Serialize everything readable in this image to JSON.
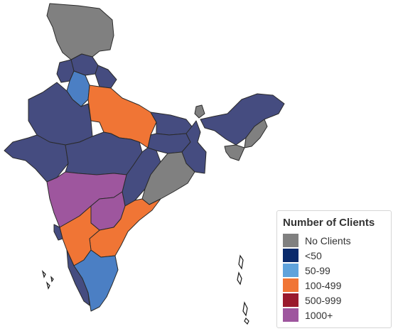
{
  "legend": {
    "title": "Number of Clients",
    "items": [
      {
        "key": "none",
        "label": "No Clients",
        "color": "#808080"
      },
      {
        "key": "lt50",
        "label": "<50",
        "color": "#0a2a6b"
      },
      {
        "key": "b50",
        "label": "50-99",
        "color": "#5fa3dc"
      },
      {
        "key": "b100",
        "label": "100-499",
        "color": "#f07535"
      },
      {
        "key": "b500",
        "label": "500-999",
        "color": "#9a1a2e"
      },
      {
        "key": "b1000",
        "label": "1000+",
        "color": "#9e569e"
      }
    ]
  },
  "map_colors": {
    "no_clients": "#808080",
    "lt50_rendered": "#454c80",
    "b50_rendered": "#4b7fc4",
    "b100_rendered": "#f07535",
    "b1000_rendered": "#9e569e"
  }
}
